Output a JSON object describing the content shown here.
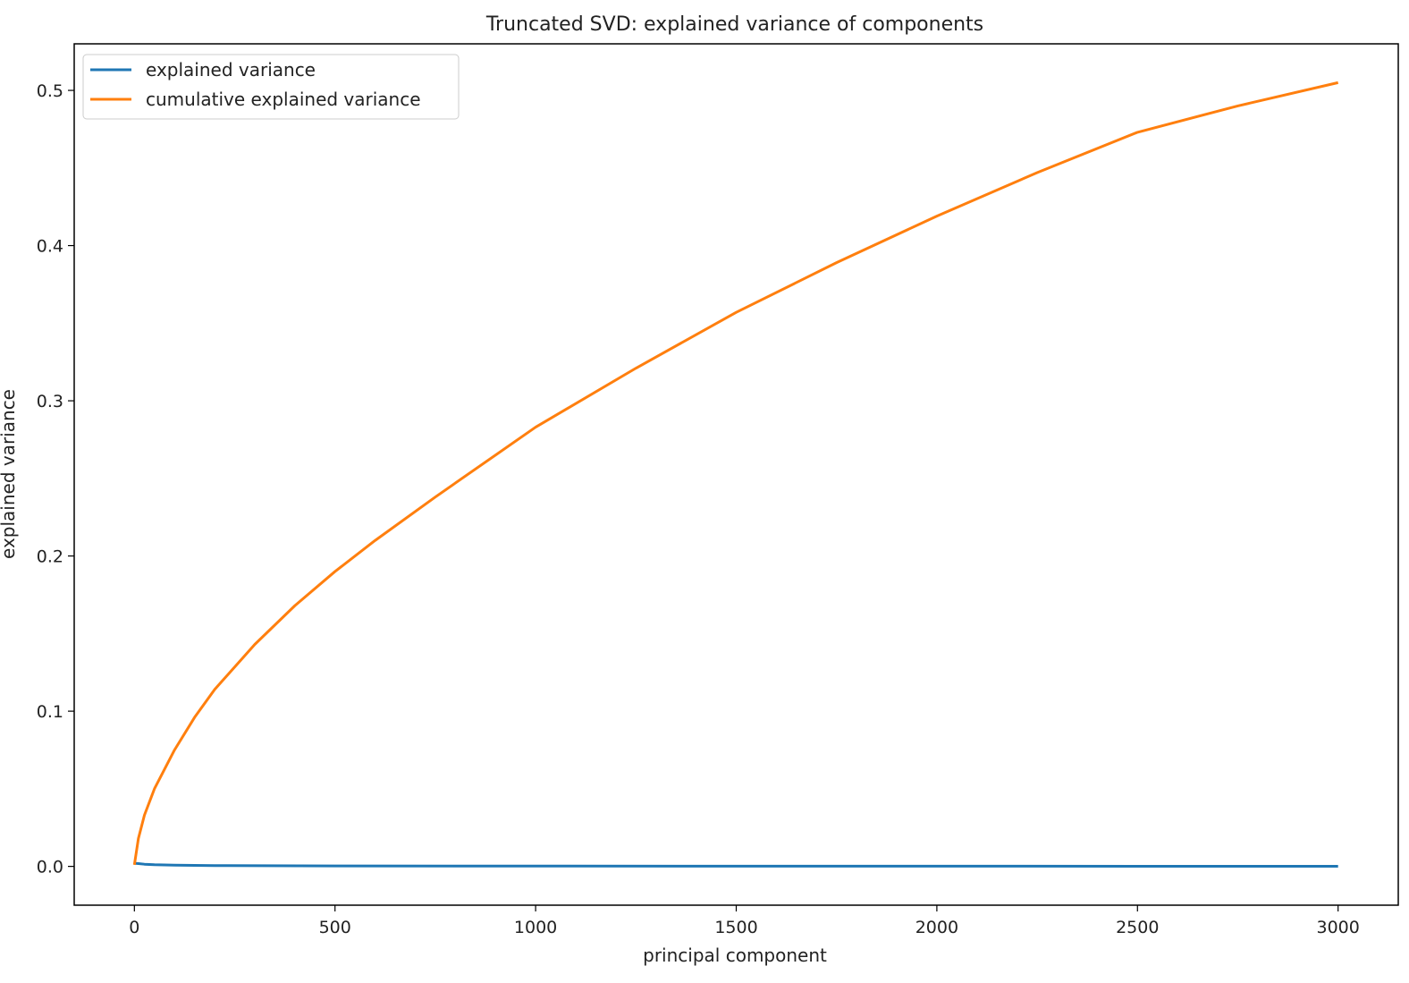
{
  "chart_data": {
    "type": "line",
    "title": "Truncated SVD: explained variance of components",
    "xlabel": "principal component",
    "ylabel": "explained variance",
    "xlim": [
      -150,
      3150
    ],
    "ylim": [
      -0.025,
      0.53
    ],
    "xticks": [
      0,
      500,
      1000,
      1500,
      2000,
      2500,
      3000
    ],
    "yticks": [
      0.0,
      0.1,
      0.2,
      0.3,
      0.4,
      0.5
    ],
    "grid": false,
    "legend": "top-left",
    "series": [
      {
        "name": "explained variance",
        "color": "#1f77b4",
        "x": [
          0,
          10,
          25,
          50,
          100,
          200,
          500,
          1000,
          1500,
          2000,
          2500,
          3000
        ],
        "y": [
          0.002,
          0.0018,
          0.0014,
          0.0011,
          0.0008,
          0.0005,
          0.0003,
          0.0002,
          0.00015,
          0.00012,
          0.0001,
          0.0001
        ]
      },
      {
        "name": "cumulative explained variance",
        "color": "#ff7f0e",
        "x": [
          0,
          10,
          25,
          50,
          100,
          150,
          200,
          300,
          400,
          500,
          600,
          750,
          1000,
          1250,
          1500,
          1750,
          2000,
          2250,
          2500,
          2750,
          3000
        ],
        "y": [
          0.001,
          0.018,
          0.033,
          0.05,
          0.075,
          0.096,
          0.114,
          0.143,
          0.168,
          0.19,
          0.21,
          0.238,
          0.283,
          0.321,
          0.357,
          0.389,
          0.419,
          0.447,
          0.473,
          0.49,
          0.505
        ]
      }
    ]
  }
}
